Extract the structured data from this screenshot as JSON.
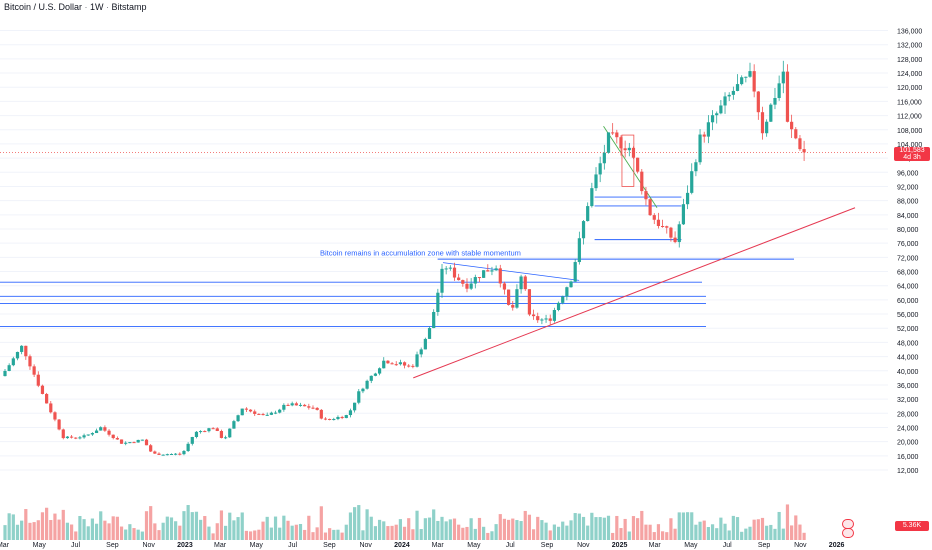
{
  "header": {
    "symbol": "Bitcoin / U.S. Dollar",
    "interval": "1W",
    "exchange": "Bitstamp"
  },
  "price_badge": {
    "price": "101,583",
    "countdown": "4d 3h"
  },
  "volume_badge": "5.36K",
  "annotation": "Bitcoin remains in accumulation zone with stable momentum",
  "colors": {
    "up": "#26a69a",
    "down": "#ef5350",
    "vol_up": "#8fd1c9",
    "vol_down": "#f5a3a3",
    "hline": "#2962ff",
    "trend": "#e53952",
    "grid": "#f0f3fa",
    "axis_text": "#131722"
  },
  "chart_data": {
    "type": "candlestick",
    "y_ticks": [
      12000,
      16000,
      20000,
      24000,
      28000,
      32000,
      36000,
      40000,
      44000,
      48000,
      52000,
      56000,
      60000,
      64000,
      68000,
      72000,
      76000,
      80000,
      84000,
      88000,
      92000,
      96000,
      100000,
      104000,
      108000,
      112000,
      116000,
      120000,
      124000,
      128000,
      132000,
      136000
    ],
    "y_tick_labels": [
      "12,000",
      "16,000",
      "20,000",
      "24,000",
      "28,000",
      "32,000",
      "36,000",
      "40,000",
      "44,000",
      "48,000",
      "52,000",
      "56,000",
      "60,000",
      "64,000",
      "68,000",
      "72,000",
      "76,000",
      "80,000",
      "84,000",
      "88,000",
      "92,000",
      "96,000",
      "100,000",
      "104,000",
      "108,000",
      "112,000",
      "116,000",
      "120,000",
      "124,000",
      "128,000",
      "132,000",
      "136,000"
    ],
    "x_labels": [
      "Mar",
      "May",
      "Jul",
      "Sep",
      "Nov",
      "2023",
      "Mar",
      "May",
      "Jul",
      "Sep",
      "Nov",
      "2024",
      "Mar",
      "May",
      "Jul",
      "Sep",
      "Nov",
      "2025",
      "Mar",
      "May",
      "Jul",
      "Sep",
      "Nov",
      "2026"
    ],
    "current_price": 101583,
    "price_path": [
      {
        "date": "2022-03-01",
        "price": 38500
      },
      {
        "date": "2022-04-05",
        "price": 47000
      },
      {
        "date": "2022-05-10",
        "price": 33000
      },
      {
        "date": "2022-06-14",
        "price": 21000
      },
      {
        "date": "2022-07-20",
        "price": 21500
      },
      {
        "date": "2022-08-15",
        "price": 24000
      },
      {
        "date": "2022-09-20",
        "price": 19500
      },
      {
        "date": "2022-10-25",
        "price": 20500
      },
      {
        "date": "2022-11-10",
        "price": 16500
      },
      {
        "date": "2022-12-30",
        "price": 16500
      },
      {
        "date": "2023-01-20",
        "price": 22500
      },
      {
        "date": "2023-02-20",
        "price": 24000
      },
      {
        "date": "2023-03-10",
        "price": 20500
      },
      {
        "date": "2023-04-10",
        "price": 29500
      },
      {
        "date": "2023-05-20",
        "price": 27000
      },
      {
        "date": "2023-06-25",
        "price": 30500
      },
      {
        "date": "2023-08-10",
        "price": 29500
      },
      {
        "date": "2023-08-25",
        "price": 26000
      },
      {
        "date": "2023-10-05",
        "price": 27500
      },
      {
        "date": "2023-10-25",
        "price": 34500
      },
      {
        "date": "2023-12-05",
        "price": 43000
      },
      {
        "date": "2024-01-20",
        "price": 41000
      },
      {
        "date": "2024-02-20",
        "price": 52000
      },
      {
        "date": "2024-03-14",
        "price": 70000
      },
      {
        "date": "2024-04-20",
        "price": 64000
      },
      {
        "date": "2024-05-20",
        "price": 68000
      },
      {
        "date": "2024-06-10",
        "price": 69500
      },
      {
        "date": "2024-07-05",
        "price": 56000
      },
      {
        "date": "2024-07-25",
        "price": 68000
      },
      {
        "date": "2024-08-05",
        "price": 55000
      },
      {
        "date": "2024-09-06",
        "price": 54000
      },
      {
        "date": "2024-10-15",
        "price": 66500
      },
      {
        "date": "2024-11-12",
        "price": 88000
      },
      {
        "date": "2024-12-17",
        "price": 106000
      },
      {
        "date": "2025-01-20",
        "price": 103000
      },
      {
        "date": "2025-02-25",
        "price": 84000
      },
      {
        "date": "2025-04-07",
        "price": 76500
      },
      {
        "date": "2025-05-20",
        "price": 106000
      },
      {
        "date": "2025-07-14",
        "price": 119000
      },
      {
        "date": "2025-08-14",
        "price": 123000
      },
      {
        "date": "2025-09-01",
        "price": 108000
      },
      {
        "date": "2025-10-06",
        "price": 124500
      },
      {
        "date": "2025-10-11",
        "price": 110000
      },
      {
        "date": "2025-11-10",
        "price": 101583
      }
    ],
    "horizontal_levels": [
      52500,
      59000,
      61000,
      65000,
      71500,
      77000,
      86500,
      89000
    ],
    "trendline": {
      "from": {
        "date": "2024-01-20",
        "price": 38000
      },
      "to": {
        "date": "2026-02-01",
        "price": 86000
      }
    }
  }
}
